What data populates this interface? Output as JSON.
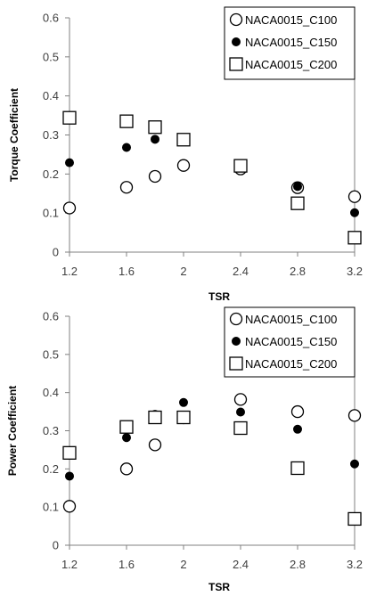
{
  "chart_data": [
    {
      "type": "scatter",
      "title": "",
      "xlabel": "TSR",
      "ylabel": "Torque Coefficient",
      "xlim": [
        1.2,
        3.2
      ],
      "ylim": [
        0,
        0.6
      ],
      "x_ticks": [
        "1.2",
        "1.6",
        "2",
        "2.4",
        "2.8",
        "3.2"
      ],
      "y_ticks": [
        "0",
        "0.1",
        "0.2",
        "0.3",
        "0.4",
        "0.5",
        "0.6"
      ],
      "legend_position": "top-right",
      "grid": false,
      "series": [
        {
          "name": "NACA0015_C100",
          "marker": "open-circle",
          "x": [
            1.2,
            1.6,
            1.8,
            2.0,
            2.4,
            2.8,
            3.2
          ],
          "y": [
            0.113,
            0.166,
            0.194,
            0.222,
            0.213,
            0.165,
            0.142
          ]
        },
        {
          "name": "NACA0015_C150",
          "marker": "filled-circle",
          "x": [
            1.2,
            1.6,
            1.8,
            2.0,
            2.4,
            2.8,
            3.2
          ],
          "y": [
            0.229,
            0.268,
            0.289,
            0.286,
            0.222,
            0.168,
            0.101
          ]
        },
        {
          "name": "NACA0015_C200",
          "marker": "open-square",
          "x": [
            1.2,
            1.6,
            1.8,
            2.0,
            2.4,
            2.8,
            3.2
          ],
          "y": [
            0.344,
            0.335,
            0.32,
            0.288,
            0.221,
            0.125,
            0.037
          ]
        }
      ]
    },
    {
      "type": "scatter",
      "title": "",
      "xlabel": "TSR",
      "ylabel": "Power Coefficient",
      "xlim": [
        1.2,
        3.2
      ],
      "ylim": [
        0,
        0.6
      ],
      "x_ticks": [
        "1.2",
        "1.6",
        "2",
        "2.4",
        "2.8",
        "3.2"
      ],
      "y_ticks": [
        "0",
        "0.1",
        "0.2",
        "0.3",
        "0.4",
        "0.5",
        "0.6"
      ],
      "legend_position": "top-right",
      "grid": false,
      "series": [
        {
          "name": "NACA0015_C100",
          "marker": "open-circle",
          "x": [
            1.2,
            1.6,
            1.8,
            2.0,
            2.4,
            2.8,
            3.2
          ],
          "y": [
            0.102,
            0.2,
            0.263,
            0.334,
            0.382,
            0.35,
            0.34
          ]
        },
        {
          "name": "NACA0015_C150",
          "marker": "filled-circle",
          "x": [
            1.2,
            1.6,
            1.8,
            2.0,
            2.4,
            2.8,
            3.2
          ],
          "y": [
            0.181,
            0.282,
            0.343,
            0.374,
            0.349,
            0.304,
            0.213
          ]
        },
        {
          "name": "NACA0015_C200",
          "marker": "open-square",
          "x": [
            1.2,
            1.6,
            1.8,
            2.0,
            2.4,
            2.8,
            3.2
          ],
          "y": [
            0.242,
            0.31,
            0.335,
            0.335,
            0.307,
            0.202,
            0.069
          ]
        }
      ]
    }
  ]
}
